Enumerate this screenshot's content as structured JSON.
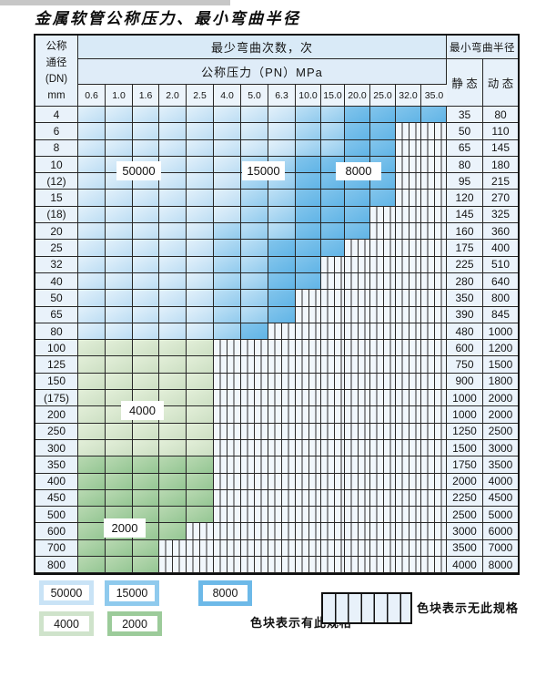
{
  "title": "金属软管公称压力、最小弯曲半径",
  "header": {
    "dn_lines": [
      "公称",
      "通径",
      "(DN)",
      "mm"
    ],
    "cycles_label": "最少弯曲次数，次",
    "pn_label": "公称压力（PN）MPa",
    "radius_label": "最小弯曲半径",
    "static_label": "静 态",
    "dynamic_label": "动 态",
    "pn_values": [
      "0.6",
      "1.0",
      "1.6",
      "2.0",
      "2.5",
      "4.0",
      "5.0",
      "6.3",
      "10.0",
      "15.0",
      "20.0",
      "25.0",
      "32.0",
      "35.0"
    ]
  },
  "colors": {
    "blue_50000": "#cbe4f6",
    "blue_15000": "#9fd0f0",
    "blue_8000": "#6abae8",
    "green_4000": "#d9e8d1",
    "green_2000": "#a5cfa3",
    "no_spec_hatch_bg": "#f1f7fc"
  },
  "zone_labels": [
    "50000",
    "15000",
    "8000",
    "4000",
    "2000"
  ],
  "rows": [
    {
      "dn": "4",
      "st": "35",
      "dy": "80",
      "type": "blue",
      "z": [
        8,
        10,
        14
      ]
    },
    {
      "dn": "6",
      "st": "50",
      "dy": "110",
      "type": "blue",
      "z": [
        8,
        10,
        12
      ]
    },
    {
      "dn": "8",
      "st": "65",
      "dy": "145",
      "type": "blue",
      "z": [
        8,
        10,
        12
      ]
    },
    {
      "dn": "10",
      "st": "80",
      "dy": "180",
      "type": "blue",
      "z": [
        6,
        8,
        12
      ]
    },
    {
      "dn": "(12)",
      "st": "95",
      "dy": "215",
      "type": "blue",
      "z": [
        6,
        8,
        12
      ]
    },
    {
      "dn": "15",
      "st": "120",
      "dy": "270",
      "type": "blue",
      "z": [
        6,
        8,
        12
      ]
    },
    {
      "dn": "(18)",
      "st": "145",
      "dy": "325",
      "type": "blue",
      "z": [
        6,
        8,
        11
      ]
    },
    {
      "dn": "20",
      "st": "160",
      "dy": "360",
      "type": "blue",
      "z": [
        5,
        8,
        11
      ]
    },
    {
      "dn": "25",
      "st": "175",
      "dy": "400",
      "type": "blue",
      "z": [
        5,
        7,
        10
      ]
    },
    {
      "dn": "32",
      "st": "225",
      "dy": "510",
      "type": "blue",
      "z": [
        5,
        7,
        9
      ]
    },
    {
      "dn": "40",
      "st": "280",
      "dy": "640",
      "type": "blue",
      "z": [
        5,
        7,
        9
      ]
    },
    {
      "dn": "50",
      "st": "350",
      "dy": "800",
      "type": "blue",
      "z": [
        5,
        7,
        8
      ]
    },
    {
      "dn": "65",
      "st": "390",
      "dy": "845",
      "type": "blue",
      "z": [
        5,
        7,
        8
      ]
    },
    {
      "dn": "80",
      "st": "480",
      "dy": "1000",
      "type": "blue",
      "z": [
        5,
        6,
        7
      ]
    },
    {
      "dn": "100",
      "st": "600",
      "dy": "1200",
      "type": "green",
      "shade": "4000",
      "end": 5
    },
    {
      "dn": "125",
      "st": "750",
      "dy": "1500",
      "type": "green",
      "shade": "4000",
      "end": 5
    },
    {
      "dn": "150",
      "st": "900",
      "dy": "1800",
      "type": "green",
      "shade": "4000",
      "end": 5
    },
    {
      "dn": "(175)",
      "st": "1000",
      "dy": "2000",
      "type": "green",
      "shade": "4000",
      "end": 5
    },
    {
      "dn": "200",
      "st": "1000",
      "dy": "2000",
      "type": "green",
      "shade": "4000",
      "end": 5
    },
    {
      "dn": "250",
      "st": "1250",
      "dy": "2500",
      "type": "green",
      "shade": "4000",
      "end": 5
    },
    {
      "dn": "300",
      "st": "1500",
      "dy": "3000",
      "type": "green",
      "shade": "4000",
      "end": 5
    },
    {
      "dn": "350",
      "st": "1750",
      "dy": "3500",
      "type": "green",
      "shade": "2000",
      "end": 5
    },
    {
      "dn": "400",
      "st": "2000",
      "dy": "4000",
      "type": "green",
      "shade": "2000",
      "end": 5
    },
    {
      "dn": "450",
      "st": "2250",
      "dy": "4500",
      "type": "green",
      "shade": "2000",
      "end": 5
    },
    {
      "dn": "500",
      "st": "2500",
      "dy": "5000",
      "type": "green",
      "shade": "2000",
      "end": 5
    },
    {
      "dn": "600",
      "st": "3000",
      "dy": "6000",
      "type": "green",
      "shade": "2000",
      "end": 4
    },
    {
      "dn": "700",
      "st": "3500",
      "dy": "7000",
      "type": "green",
      "shade": "2000",
      "end": 3
    },
    {
      "dn": "800",
      "st": "4000",
      "dy": "8000",
      "type": "green",
      "shade": "2000",
      "end": 3
    }
  ],
  "legend": {
    "swatches": [
      "50000",
      "15000",
      "8000",
      "4000",
      "2000"
    ],
    "has_spec_label": "色块表示有此规格",
    "no_spec_label": "色块表示无此规格"
  }
}
